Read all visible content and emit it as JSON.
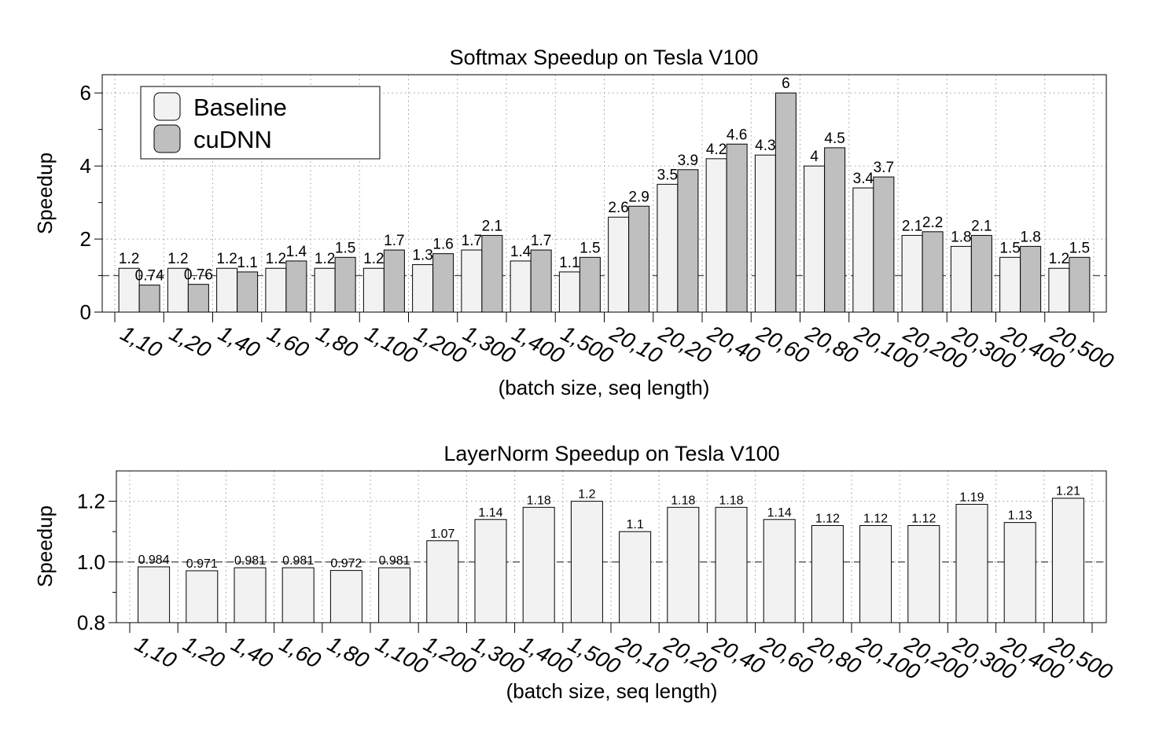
{
  "colors": {
    "baseline": "#f2f2f2",
    "cudnn": "#bfbfbf",
    "stroke": "#000000",
    "grid": "#9a9a9a",
    "reference": "#555555"
  },
  "chart_data": [
    {
      "type": "bar",
      "title": "Softmax Speedup on Tesla V100",
      "xlabel": "(batch size, seq length)",
      "ylabel": "Speedup",
      "ylim": [
        0,
        6.5
      ],
      "yticks": [
        "0",
        "2",
        "4",
        "6"
      ],
      "reference_line": 1,
      "grid": true,
      "legend": {
        "position": "top-left",
        "entries": [
          "Baseline",
          "cuDNN"
        ]
      },
      "categories": [
        "1,10",
        "1,20",
        "1,40",
        "1,60",
        "1,80",
        "1,100",
        "1,200",
        "1,300",
        "1,400",
        "1,500",
        "20,10",
        "20,20",
        "20,40",
        "20,60",
        "20,80",
        "20,100",
        "20,200",
        "20,300",
        "20,400",
        "20,500"
      ],
      "series": [
        {
          "name": "Baseline",
          "values": [
            1.2,
            1.2,
            1.2,
            1.2,
            1.2,
            1.2,
            1.3,
            1.7,
            1.4,
            1.1,
            2.6,
            3.5,
            4.2,
            4.3,
            4,
            3.4,
            2.1,
            1.8,
            1.5,
            1.2
          ],
          "labels": [
            "1.2",
            "1.2",
            "1.2",
            "1.2",
            "1.2",
            "1.2",
            "1.3",
            "1.7",
            "1.4",
            "1.1",
            "2.6",
            "3.5",
            "4.2",
            "4.3",
            "4",
            "3.4",
            "2.1",
            "1.8",
            "1.5",
            "1.2"
          ]
        },
        {
          "name": "cuDNN",
          "values": [
            0.74,
            0.76,
            1.1,
            1.4,
            1.5,
            1.7,
            1.6,
            2.1,
            1.7,
            1.5,
            2.9,
            3.9,
            4.6,
            6,
            4.5,
            3.7,
            2.2,
            2.1,
            1.8,
            1.5
          ],
          "labels": [
            "0.74",
            "0.76",
            "1.1",
            "1.4",
            "1.5",
            "1.7",
            "1.6",
            "2.1",
            "1.7",
            "1.5",
            "2.9",
            "3.9",
            "4.6",
            "6",
            "4.5",
            "3.7",
            "2.2",
            "2.1",
            "1.8",
            "1.5"
          ]
        }
      ]
    },
    {
      "type": "bar",
      "title": "LayerNorm Speedup on Tesla V100",
      "xlabel": "(batch size, seq length)",
      "ylabel": "Speedup",
      "ylim": [
        0.8,
        1.3
      ],
      "yticks": [
        "0.8",
        "1.0",
        "1.2"
      ],
      "reference_line": 1,
      "grid": true,
      "categories": [
        "1,10",
        "1,20",
        "1,40",
        "1,60",
        "1,80",
        "1,100",
        "1,200",
        "1,300",
        "1,400",
        "1,500",
        "20,10",
        "20,20",
        "20,40",
        "20,60",
        "20,80",
        "20,100",
        "20,200",
        "20,300",
        "20,400",
        "20,500"
      ],
      "series": [
        {
          "values": [
            0.984,
            0.971,
            0.981,
            0.981,
            0.972,
            0.981,
            1.07,
            1.14,
            1.18,
            1.2,
            1.1,
            1.18,
            1.18,
            1.14,
            1.12,
            1.12,
            1.12,
            1.19,
            1.13,
            1.21
          ],
          "labels": [
            "0.984",
            "0.971",
            "0.981",
            "0.981",
            "0.972",
            "0.981",
            "1.07",
            "1.14",
            "1.18",
            "1.2",
            "1.1",
            "1.18",
            "1.18",
            "1.14",
            "1.12",
            "1.12",
            "1.12",
            "1.19",
            "1.13",
            "1.21"
          ]
        }
      ]
    }
  ]
}
